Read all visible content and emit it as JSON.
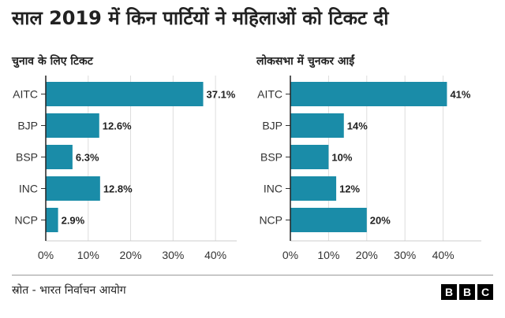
{
  "title": "साल 2019 में किन पार्टियों ने महिलाओं को टिकट दी",
  "source": "स्रोत - भारत निर्वाचन आयोग",
  "logo": [
    "B",
    "B",
    "C"
  ],
  "colors": {
    "bar": "#1a8ca8",
    "grid": "#dddddd",
    "axis": "#222222"
  },
  "chart_data": [
    {
      "type": "bar",
      "orientation": "horizontal",
      "title": "चुनाव के लिए टिकट",
      "categories": [
        "AITC",
        "BJP",
        "BSP",
        "INC",
        "NCP"
      ],
      "values": [
        37.1,
        12.6,
        6.3,
        12.8,
        2.9
      ],
      "data_labels": [
        "37.1%",
        "12.6%",
        "6.3%",
        "12.8%",
        "2.9%"
      ],
      "xlim": [
        0,
        45
      ],
      "xticks": [
        0,
        10,
        20,
        30,
        40
      ],
      "xtick_labels": [
        "0%",
        "10%",
        "20%",
        "30%",
        "40%"
      ],
      "grid": true
    },
    {
      "type": "bar",
      "orientation": "horizontal",
      "title": "लोकसभा में चुनकर आईं",
      "categories": [
        "AITC",
        "BJP",
        "BSP",
        "INC",
        "NCP"
      ],
      "values": [
        41,
        14,
        10,
        12,
        20
      ],
      "data_labels": [
        "41%",
        "14%",
        "10%",
        "12%",
        "20%"
      ],
      "xlim": [
        0,
        50
      ],
      "xticks": [
        0,
        10,
        20,
        30,
        40
      ],
      "xtick_labels": [
        "0%",
        "10%",
        "20%",
        "30%",
        "40%"
      ],
      "grid": true
    }
  ]
}
